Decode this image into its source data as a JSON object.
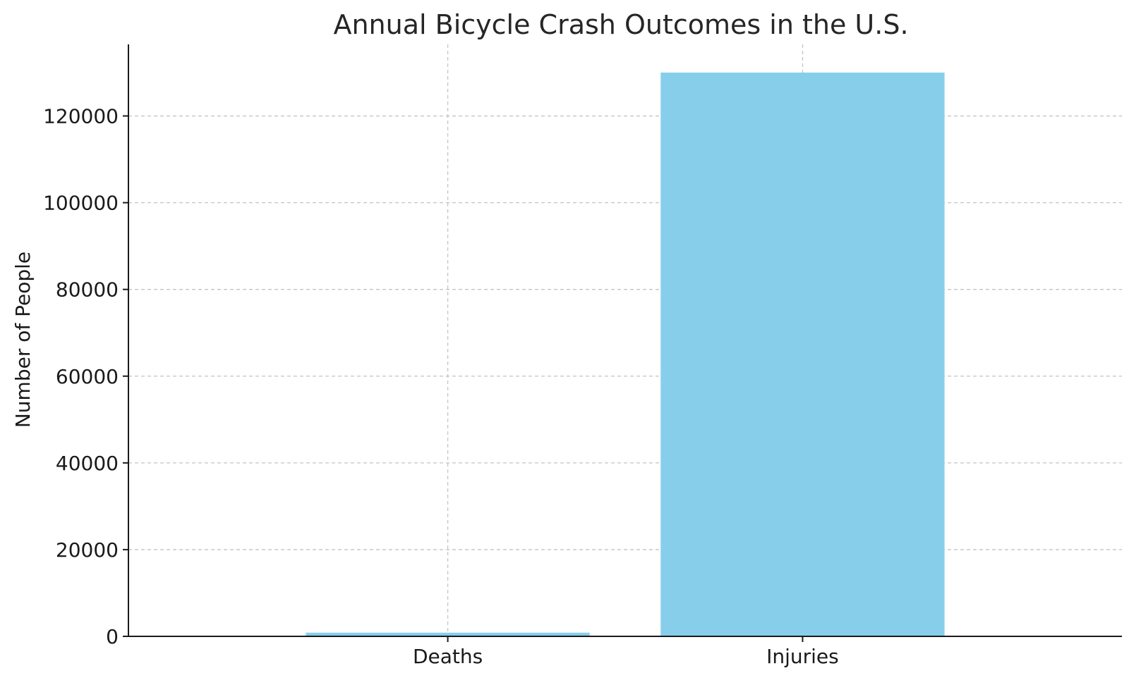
{
  "chart_data": {
    "type": "bar",
    "title": "Annual Bicycle Crash Outcomes in the U.S.",
    "xlabel": "",
    "ylabel": "Number of People",
    "categories": [
      "Deaths",
      "Injuries"
    ],
    "values": [
      850,
      130000
    ],
    "ylim": [
      0,
      136500
    ],
    "yticks": [
      0,
      20000,
      40000,
      60000,
      80000,
      100000,
      120000
    ],
    "ytick_labels": [
      "0",
      "20000",
      "40000",
      "60000",
      "80000",
      "100000",
      "120000"
    ],
    "grid": true,
    "bar_color": "#87CEEB"
  }
}
